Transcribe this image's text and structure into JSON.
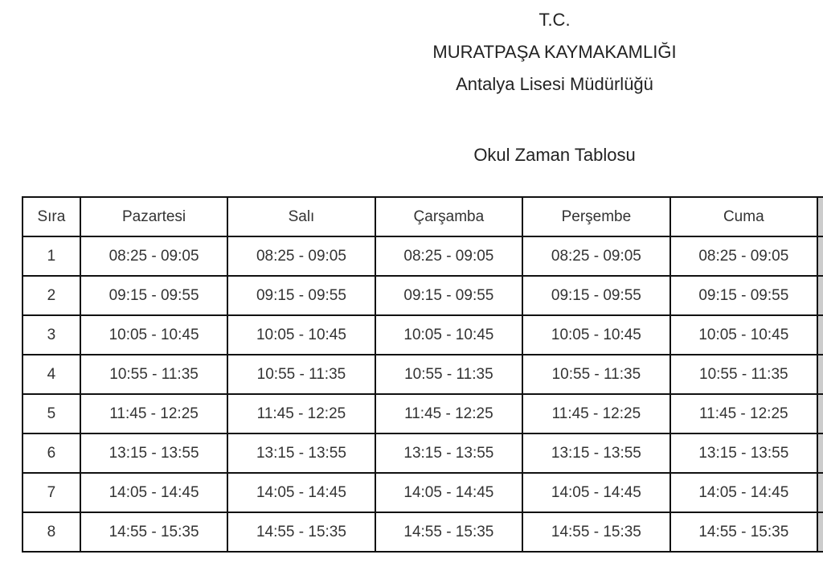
{
  "header": {
    "line1": "T.C.",
    "line2": "MURATPAŞA KAYMAKAMLIĞI",
    "line3": "Antalya Lisesi Müdürlüğü",
    "title": "Okul Zaman Tablosu"
  },
  "table": {
    "columns": [
      "Sıra",
      "Pazartesi",
      "Salı",
      "Çarşamba",
      "Perşembe",
      "Cuma"
    ],
    "rows": [
      [
        "1",
        "08:25 - 09:05",
        "08:25 - 09:05",
        "08:25 - 09:05",
        "08:25 - 09:05",
        "08:25 - 09:05"
      ],
      [
        "2",
        "09:15 - 09:55",
        "09:15 - 09:55",
        "09:15 - 09:55",
        "09:15 - 09:55",
        "09:15 - 09:55"
      ],
      [
        "3",
        "10:05 - 10:45",
        "10:05 - 10:45",
        "10:05 - 10:45",
        "10:05 - 10:45",
        "10:05 - 10:45"
      ],
      [
        "4",
        "10:55 - 11:35",
        "10:55 - 11:35",
        "10:55 - 11:35",
        "10:55 - 11:35",
        "10:55 - 11:35"
      ],
      [
        "5",
        "11:45 - 12:25",
        "11:45 - 12:25",
        "11:45 - 12:25",
        "11:45 - 12:25",
        "11:45 - 12:25"
      ],
      [
        "6",
        "13:15 - 13:55",
        "13:15 - 13:55",
        "13:15 - 13:55",
        "13:15 - 13:55",
        "13:15 - 13:55"
      ],
      [
        "7",
        "14:05 - 14:45",
        "14:05 - 14:45",
        "14:05 - 14:45",
        "14:05 - 14:45",
        "14:05 - 14:45"
      ],
      [
        "8",
        "14:55 - 15:35",
        "14:55 - 15:35",
        "14:55 - 15:35",
        "14:55 - 15:35",
        "14:55 - 15:35"
      ]
    ]
  }
}
